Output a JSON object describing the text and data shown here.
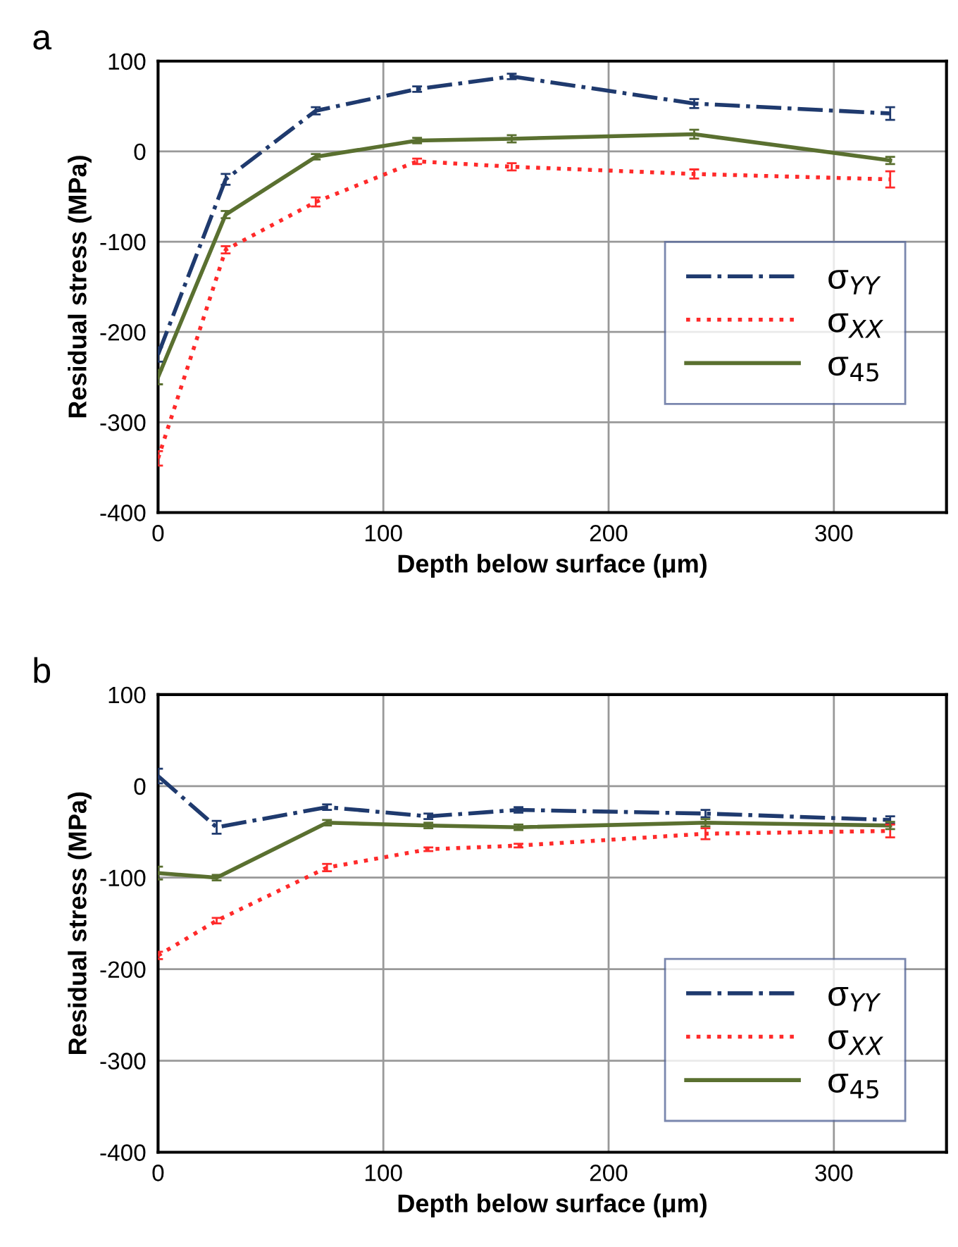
{
  "chart_data": [
    {
      "type": "line",
      "title": "a",
      "xlabel": "Depth below surface (μm)",
      "ylabel": "Residual stress (MPa)",
      "xlim": [
        0,
        350
      ],
      "xticks": [
        0,
        100,
        200,
        300
      ],
      "ylim": [
        -400,
        100
      ],
      "yticks": [
        -400,
        -300,
        -200,
        -100,
        0,
        100
      ],
      "grid": true,
      "legend": "right",
      "series": [
        {
          "name": "σ$_{YY}$",
          "color": "#1f3a6e",
          "line_style": "dashdot",
          "x": [
            0,
            30,
            70,
            115,
            157,
            238,
            325
          ],
          "values": [
            -225,
            -31,
            45,
            69,
            83,
            53,
            42
          ],
          "errors": [
            8,
            6,
            4,
            3,
            3,
            5,
            7
          ]
        },
        {
          "name": "σ$_{XX}$",
          "color": "#ff2a2a",
          "line_style": "dotted",
          "x": [
            0,
            30,
            70,
            115,
            157,
            238,
            325
          ],
          "values": [
            -340,
            -109,
            -56,
            -11,
            -17,
            -25,
            -31
          ],
          "errors": [
            8,
            4,
            5,
            3,
            4,
            5,
            9
          ]
        },
        {
          "name": "σ$_{45}$",
          "color": "#5a7030",
          "line_style": "solid",
          "x": [
            0,
            30,
            70,
            115,
            157,
            238,
            325
          ],
          "values": [
            -250,
            -70,
            -6,
            12,
            14,
            19,
            -10
          ],
          "errors": [
            8,
            4,
            3,
            3,
            4,
            5,
            4
          ]
        }
      ]
    },
    {
      "type": "line",
      "title": "b",
      "xlabel": "Depth below surface (μm)",
      "ylabel": "Residual stress (MPa)",
      "xlim": [
        0,
        350
      ],
      "xticks": [
        0,
        100,
        200,
        300
      ],
      "ylim": [
        -400,
        100
      ],
      "yticks": [
        -400,
        -300,
        -200,
        -100,
        0,
        100
      ],
      "grid": true,
      "legend": "lower right",
      "series": [
        {
          "name": "σ$_{YY}$",
          "color": "#1f3a6e",
          "line_style": "dashdot",
          "x": [
            0,
            26,
            75,
            120,
            160,
            243,
            325
          ],
          "values": [
            11,
            -45,
            -23,
            -33,
            -26,
            -30,
            -37
          ],
          "errors": [
            8,
            7,
            3,
            3,
            3,
            4,
            4
          ]
        },
        {
          "name": "σ$_{XX}$",
          "color": "#ff2a2a",
          "line_style": "dotted",
          "x": [
            0,
            26,
            75,
            120,
            160,
            243,
            325
          ],
          "values": [
            -185,
            -147,
            -89,
            -69,
            -65,
            -52,
            -49
          ],
          "errors": [
            4,
            3,
            4,
            2,
            2,
            6,
            7
          ]
        },
        {
          "name": "σ$_{45}$",
          "color": "#5a7030",
          "line_style": "solid",
          "x": [
            0,
            26,
            75,
            120,
            160,
            243,
            325
          ],
          "values": [
            -95,
            -100,
            -40,
            -43,
            -45,
            -40,
            -43
          ],
          "errors": [
            7,
            3,
            3,
            3,
            3,
            4,
            4
          ]
        }
      ]
    }
  ]
}
